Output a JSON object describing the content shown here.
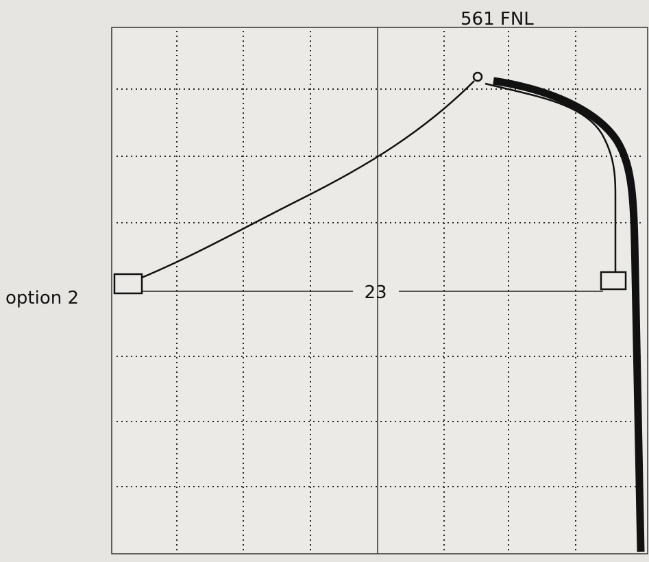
{
  "labels": {
    "top": "561 FNL",
    "left": "option 2",
    "center": "23"
  }
}
